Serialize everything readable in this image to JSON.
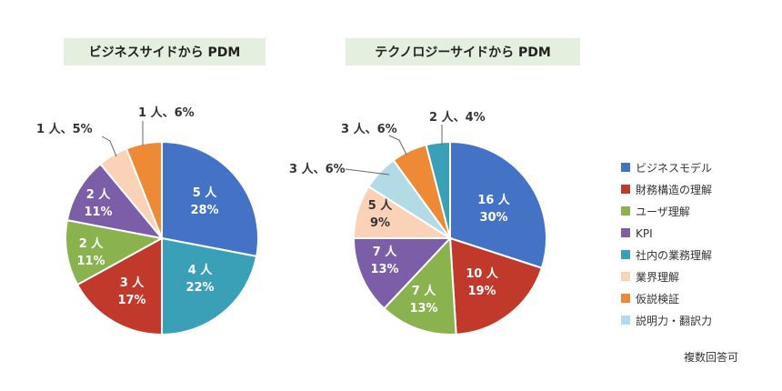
{
  "chart_data": [
    {
      "type": "pie",
      "title": "ビジネスサイドから PDM",
      "slices": [
        {
          "category": "ビジネスモデル",
          "count": "5 人",
          "percent": "28%",
          "value": 28
        },
        {
          "category": "社内の業務理解",
          "count": "4 人",
          "percent": "22%",
          "value": 22
        },
        {
          "category": "財務構造の理解",
          "count": "3 人",
          "percent": "17%",
          "value": 17
        },
        {
          "category": "ユーザ理解",
          "count": "2 人",
          "percent": "11%",
          "value": 11
        },
        {
          "category": "KPI",
          "count": "2 人",
          "percent": "11%",
          "value": 11
        },
        {
          "category": "業界理解",
          "count": "1 人、5%",
          "percent": "",
          "value": 5
        },
        {
          "category": "仮説検証",
          "count": "1 人、6%",
          "percent": "",
          "value": 6
        }
      ]
    },
    {
      "type": "pie",
      "title": "テクノロジーサイドから PDM",
      "slices": [
        {
          "category": "ビジネスモデル",
          "count": "16 人",
          "percent": "30%",
          "value": 30
        },
        {
          "category": "財務構造の理解",
          "count": "10 人",
          "percent": "19%",
          "value": 19
        },
        {
          "category": "ユーザ理解",
          "count": "7 人",
          "percent": "13%",
          "value": 13
        },
        {
          "category": "KPI",
          "count": "7 人",
          "percent": "13%",
          "value": 13
        },
        {
          "category": "業界理解",
          "count": "5 人",
          "percent": "9%",
          "value": 9
        },
        {
          "category": "説明力・翻訳力",
          "count": "3 人、6%",
          "percent": "",
          "value": 6
        },
        {
          "category": "仮説検証",
          "count": "3 人、6%",
          "percent": "",
          "value": 6
        },
        {
          "category": "社内の業務理解",
          "count": "2 人、4%",
          "percent": "",
          "value": 4
        }
      ]
    }
  ],
  "legend": [
    {
      "label": "ビジネスモデル",
      "color": "#4472c4"
    },
    {
      "label": "財務構造の理解",
      "color": "#c0392b"
    },
    {
      "label": "ユーザ理解",
      "color": "#8ab24f"
    },
    {
      "label": "KPI",
      "color": "#7b5ea7"
    },
    {
      "label": "社内の業務理解",
      "color": "#3aa0b8"
    },
    {
      "label": "業界理解",
      "color": "#f9d2b8"
    },
    {
      "label": "仮説検証",
      "color": "#ee8a35"
    },
    {
      "label": "説明力・翻訳力",
      "color": "#b3dbe6"
    }
  ],
  "note": "複数回答可"
}
